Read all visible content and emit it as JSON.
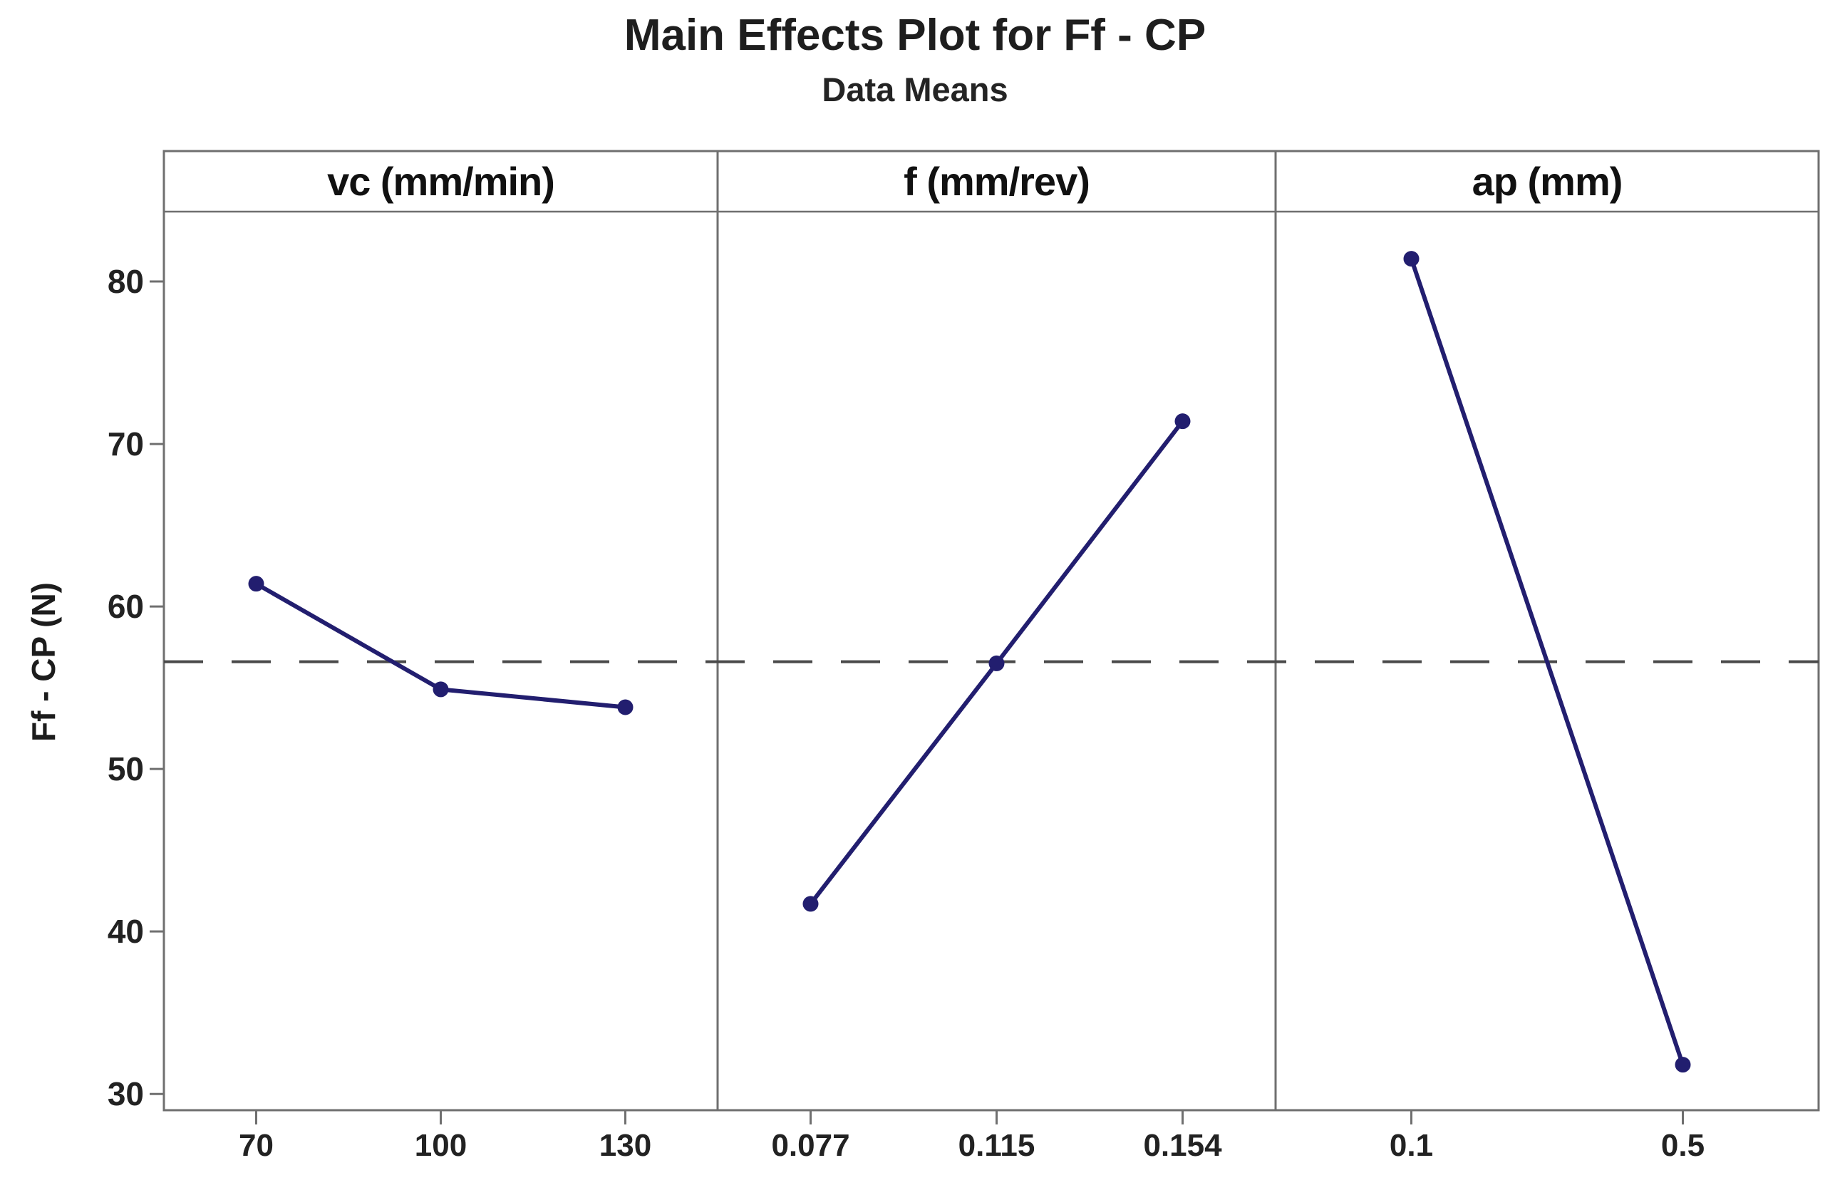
{
  "chart_data": {
    "type": "line",
    "title": "Main Effects Plot for Ff - CP",
    "subtitle": "Data Means",
    "ylabel": "Ff - CP (N)",
    "ylim": [
      29.0,
      84.3
    ],
    "yticks": [
      30,
      40,
      50,
      60,
      70,
      80
    ],
    "grid": "off",
    "legend": "none",
    "mean_line": 56.6,
    "series_color": "#221e6f",
    "mean_line_color": "#4a4a4a",
    "border_color": "#6f6f6f",
    "text_color": "#1c1c1c",
    "panels": [
      {
        "header": "vc (mm/min)",
        "categories": [
          "70",
          "100",
          "130"
        ],
        "values": [
          61.4,
          54.9,
          53.8
        ]
      },
      {
        "header": "f (mm/rev)",
        "categories": [
          "0.077",
          "0.115",
          "0.154"
        ],
        "values": [
          41.7,
          56.5,
          71.4
        ]
      },
      {
        "header": "ap (mm)",
        "categories": [
          "0.1",
          "0.5"
        ],
        "values": [
          81.4,
          31.8
        ]
      }
    ]
  }
}
